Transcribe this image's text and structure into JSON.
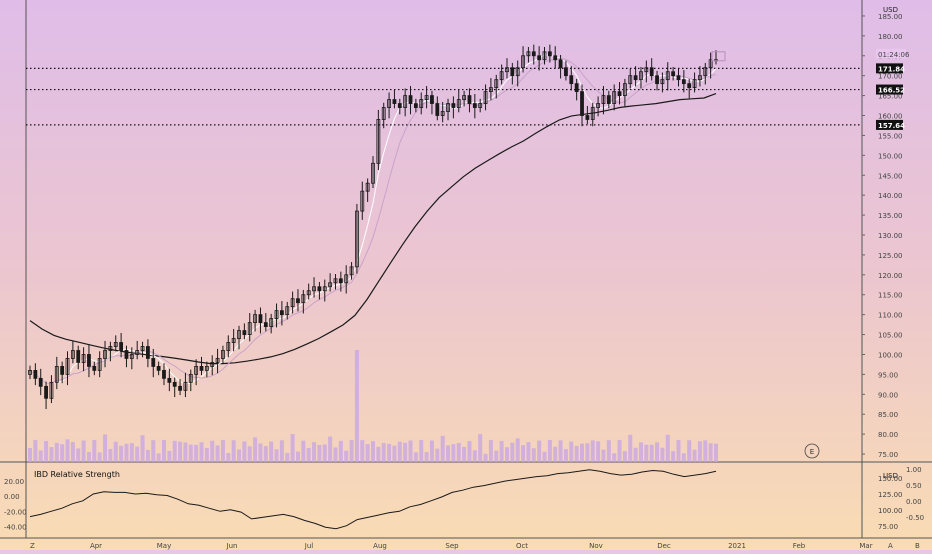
{
  "colors": {
    "bg_top": "#dfbde8",
    "bg_mid": "#ecc6cf",
    "bg_bottom": "#f9dcb3",
    "candle": "#1a1a1a",
    "ma_long": "#1a1a1a",
    "ma_short": "#ffffff",
    "ma_short2": "#c9a3c9",
    "volume": "#c6a4e6",
    "rs_line": "#1a1a1a",
    "price_tag_bg": "#111111",
    "price_tag_fg": "#ffffff"
  },
  "chart_data": [
    {
      "type": "candlestick",
      "title": "",
      "currency_label": "USD",
      "x_axis_labels": [
        "Apr",
        "May",
        "Jun",
        "Jul",
        "Aug",
        "Sep",
        "Oct",
        "Nov",
        "Dec",
        "2021",
        "Feb",
        "Mar"
      ],
      "x_axis_corner_left": "Z",
      "x_axis_corner_right_a": "A",
      "x_axis_corner_right_b": "B",
      "y_ticks": [
        "185.00",
        "180.00",
        "175.00",
        "170.00",
        "165.00",
        "160.00",
        "155.00",
        "150.00",
        "145.00",
        "140.00",
        "135.00",
        "130.00",
        "125.00",
        "120.00",
        "115.00",
        "110.00",
        "105.00",
        "100.00",
        "95.00",
        "90.00",
        "85.00",
        "80.00",
        "75.00"
      ],
      "ylim": [
        73,
        188
      ],
      "horizontal_lines": [
        171.84,
        166.52,
        157.64
      ],
      "price_labels": [
        "171.84",
        "166.52",
        "157.64"
      ],
      "countdown_label": "01:24:06",
      "earnings_marker": "E",
      "closes": [
        96,
        94,
        92,
        89,
        93,
        97,
        95,
        99,
        101,
        98,
        100,
        97,
        96,
        99,
        101,
        102,
        103,
        101,
        99,
        100,
        101,
        102,
        99,
        97,
        96,
        94,
        93,
        92,
        91,
        93,
        95,
        97,
        96,
        97,
        98,
        99,
        101,
        103,
        104,
        106,
        105,
        108,
        110,
        108,
        107,
        109,
        111,
        110,
        112,
        114,
        113,
        115,
        116,
        117,
        116,
        117,
        118,
        119,
        118,
        120,
        122,
        136,
        141,
        143,
        148,
        159,
        162,
        164,
        163,
        162,
        165,
        163,
        162,
        164,
        165,
        163,
        160,
        161,
        163,
        162,
        164,
        165,
        163,
        162,
        163,
        166,
        167,
        169,
        171,
        172,
        170,
        172,
        175,
        176,
        175,
        174,
        176,
        175,
        174,
        172,
        170,
        168,
        166,
        160,
        159,
        162,
        163,
        165,
        163,
        166,
        165,
        168,
        170,
        169,
        171,
        172,
        170,
        168,
        169,
        171,
        170,
        169,
        168,
        167,
        169,
        170,
        172,
        174,
        174
      ],
      "ma_long_values": [
        108.5,
        106.4,
        104.8,
        103.8,
        103.1,
        102.4,
        101.7,
        101.1,
        100.6,
        100.2,
        99.8,
        99.5,
        99.1,
        98.6,
        98.1,
        97.7,
        97.7,
        97.9,
        98.3,
        98.8,
        99.4,
        100.2,
        101.3,
        102.6,
        104.0,
        105.7,
        107.4,
        109.8,
        113.8,
        118.5,
        123.2,
        127.8,
        132.1,
        136.0,
        139.4,
        142.0,
        144.6,
        146.8,
        148.6,
        150.4,
        152.1,
        153.6,
        155.5,
        157.3,
        158.9,
        159.9,
        160.3,
        160.7,
        161.3,
        162.0,
        162.4,
        162.7,
        163.0,
        163.5,
        164.0,
        164.2,
        164.4,
        165.5
      ],
      "series": [
        {
          "name": "IBD Relative Strength",
          "values": [
            -27,
            -24,
            -20,
            -16,
            -10,
            -6,
            3,
            6,
            5,
            5,
            3,
            4,
            2,
            1,
            -4,
            -10,
            -12,
            -16,
            -20,
            -18,
            -21,
            -30,
            -28,
            -26,
            -24,
            -27,
            -32,
            -36,
            -41,
            -43,
            -39,
            -31,
            -28,
            -25,
            -22,
            -20,
            -14,
            -11,
            -6,
            -1,
            5,
            8,
            12,
            14,
            17,
            20,
            22,
            24,
            26,
            27,
            30,
            31,
            33,
            35,
            33,
            30,
            28,
            29,
            32,
            34,
            33,
            29,
            26,
            28,
            30,
            33
          ]
        }
      ],
      "rs_y_ticks": [
        "20.00",
        "0.00",
        "-20.00",
        "-40.00"
      ],
      "rs_y_ticks_right_a": [
        "150.00",
        "125.00",
        "100.00",
        "75.00"
      ],
      "rs_y_ticks_right_b": [
        "1.00",
        "0.50",
        "0.00",
        "-0.50"
      ],
      "rs_currency_label": "USD"
    }
  ]
}
